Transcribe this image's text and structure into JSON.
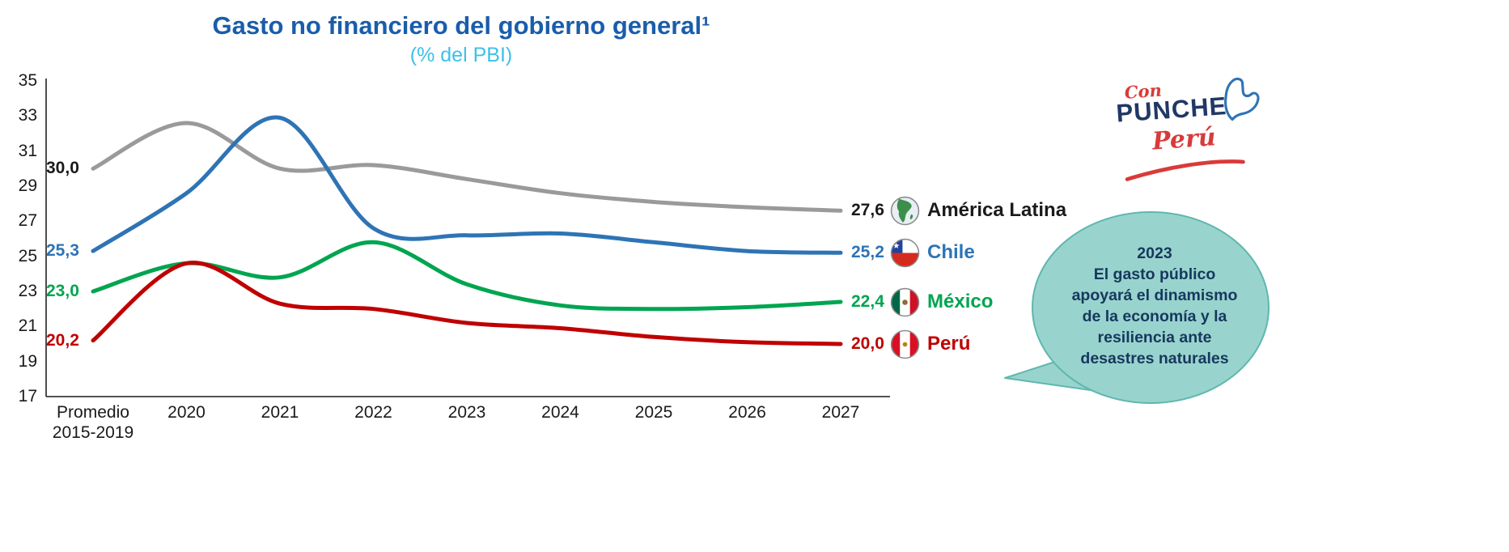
{
  "title": "Gasto no financiero del gobierno general¹",
  "subtitle": "(% del PBI)",
  "colors": {
    "title": "#1A5DAB",
    "subtitle": "#3EC0E8",
    "axis": "#3a3a3a",
    "bubble_fill": "#98D4CD",
    "bubble_stroke": "#5FB7AE",
    "bubble_text": "#17375E",
    "logo_red": "#D93A3A",
    "logo_blue": "#203864"
  },
  "chart_data": {
    "type": "line",
    "x_labels": [
      "Promedio\n2015-2019",
      "2020",
      "2021",
      "2022",
      "2023",
      "2024",
      "2025",
      "2026",
      "2027"
    ],
    "ylim": [
      17,
      35
    ],
    "yticks": [
      35,
      33,
      31,
      29,
      27,
      25,
      23,
      21,
      19,
      17
    ],
    "grid": false,
    "legend_position": "right",
    "series": [
      {
        "id": "america-latina",
        "name": "América Latina",
        "line_color": "#9A9A9A",
        "label_color": "#1A1A1A",
        "values": [
          30.0,
          32.6,
          30.0,
          30.2,
          29.4,
          28.6,
          28.1,
          27.8,
          27.6
        ],
        "start_label": "30,0",
        "end_label": "27,6",
        "icon": "globe"
      },
      {
        "id": "chile",
        "name": "Chile",
        "line_color": "#2E74B5",
        "label_color": "#2E74B5",
        "values": [
          25.3,
          28.6,
          32.9,
          26.6,
          26.2,
          26.3,
          25.8,
          25.3,
          25.2
        ],
        "start_label": "25,3",
        "end_label": "25,2",
        "icon": "flag-chile"
      },
      {
        "id": "mexico",
        "name": "México",
        "line_color": "#00A550",
        "label_color": "#00A550",
        "values": [
          23.0,
          24.6,
          23.8,
          25.8,
          23.4,
          22.2,
          22.0,
          22.1,
          22.4
        ],
        "start_label": "23,0",
        "end_label": "22,4",
        "icon": "flag-mexico"
      },
      {
        "id": "peru",
        "name": "Perú",
        "line_color": "#C00000",
        "label_color": "#C00000",
        "values": [
          20.2,
          24.6,
          22.3,
          22.0,
          21.2,
          20.9,
          20.4,
          20.1,
          20.0
        ],
        "start_label": "20,2",
        "end_label": "20,0",
        "icon": "flag-peru"
      }
    ]
  },
  "logo": {
    "word1": "Con",
    "word2": "PUNCHE",
    "word3": "Perú"
  },
  "callout": {
    "lines": [
      "2023",
      "El gasto público",
      "apoyará el dinamismo",
      "de la economía y la",
      "resiliencia ante",
      "desastres naturales"
    ]
  }
}
